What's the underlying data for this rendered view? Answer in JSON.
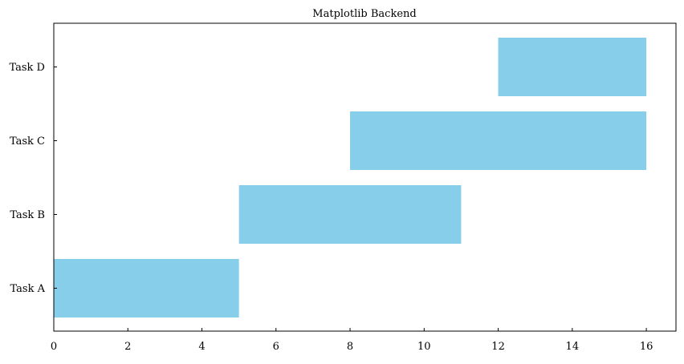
{
  "chart_data": {
    "type": "bar",
    "orientation": "horizontal",
    "title": "Matplotlib Backend",
    "xlabel": "",
    "ylabel": "",
    "xlim": [
      0,
      16.8
    ],
    "xticks": [
      0,
      2,
      4,
      6,
      8,
      10,
      12,
      14,
      16
    ],
    "categories": [
      "Task A",
      "Task B",
      "Task C",
      "Task D"
    ],
    "tasks": [
      {
        "name": "Task A",
        "start": 0,
        "end": 5
      },
      {
        "name": "Task B",
        "start": 5,
        "end": 11
      },
      {
        "name": "Task C",
        "start": 8,
        "end": 16
      },
      {
        "name": "Task D",
        "start": 12,
        "end": 16
      }
    ],
    "bar_color": "#87ceeb",
    "grid": false,
    "legend": "none"
  }
}
